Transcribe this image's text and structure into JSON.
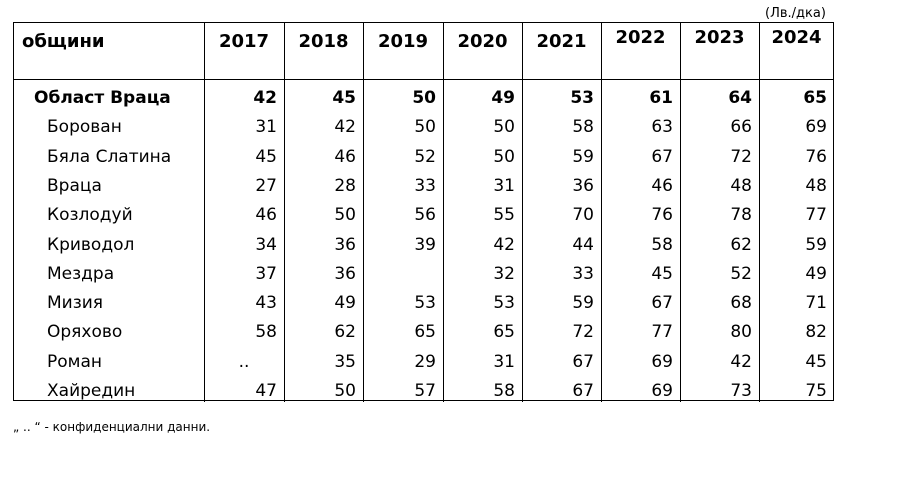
{
  "unit": "(Лв./дка)",
  "header": {
    "municipality": "общини",
    "years": [
      "2017",
      "2018",
      "2019",
      "2020",
      "2021",
      "2022",
      "2023",
      "2024"
    ]
  },
  "rows": [
    {
      "name": "Област Враца",
      "values": [
        "42",
        "45",
        "50",
        "49",
        "53",
        "61",
        "64",
        "65"
      ]
    },
    {
      "name": "Борован",
      "values": [
        "31",
        "42",
        "50",
        "50",
        "58",
        "63",
        "66",
        "69"
      ]
    },
    {
      "name": "Бяла Слатина",
      "values": [
        "45",
        "46",
        "52",
        "50",
        "59",
        "67",
        "72",
        "76"
      ]
    },
    {
      "name": "Враца",
      "values": [
        "27",
        "28",
        "33",
        "31",
        "36",
        "46",
        "48",
        "48"
      ]
    },
    {
      "name": "Козлодуй",
      "values": [
        "46",
        "50",
        "56",
        "55",
        "70",
        "76",
        "78",
        "77"
      ]
    },
    {
      "name": "Криводол",
      "values": [
        "34",
        "36",
        "39",
        "42",
        "44",
        "58",
        "62",
        "59"
      ]
    },
    {
      "name": "Мездра",
      "values": [
        "37",
        "36",
        "",
        "32",
        "33",
        "45",
        "52",
        "49"
      ]
    },
    {
      "name": "Мизия",
      "values": [
        "43",
        "49",
        "53",
        "53",
        "59",
        "67",
        "68",
        "71"
      ]
    },
    {
      "name": "Оряхово",
      "values": [
        "58",
        "62",
        "65",
        "65",
        "72",
        "77",
        "80",
        "82"
      ]
    },
    {
      "name": "Роман",
      "values": [
        "..",
        "35",
        "29",
        "31",
        "67",
        "69",
        "42",
        "45"
      ]
    },
    {
      "name": "Хайредин",
      "values": [
        "47",
        "50",
        "57",
        "58",
        "67",
        "69",
        "73",
        "75"
      ]
    }
  ],
  "footnote": "„ .. “ - конфиденциални данни."
}
